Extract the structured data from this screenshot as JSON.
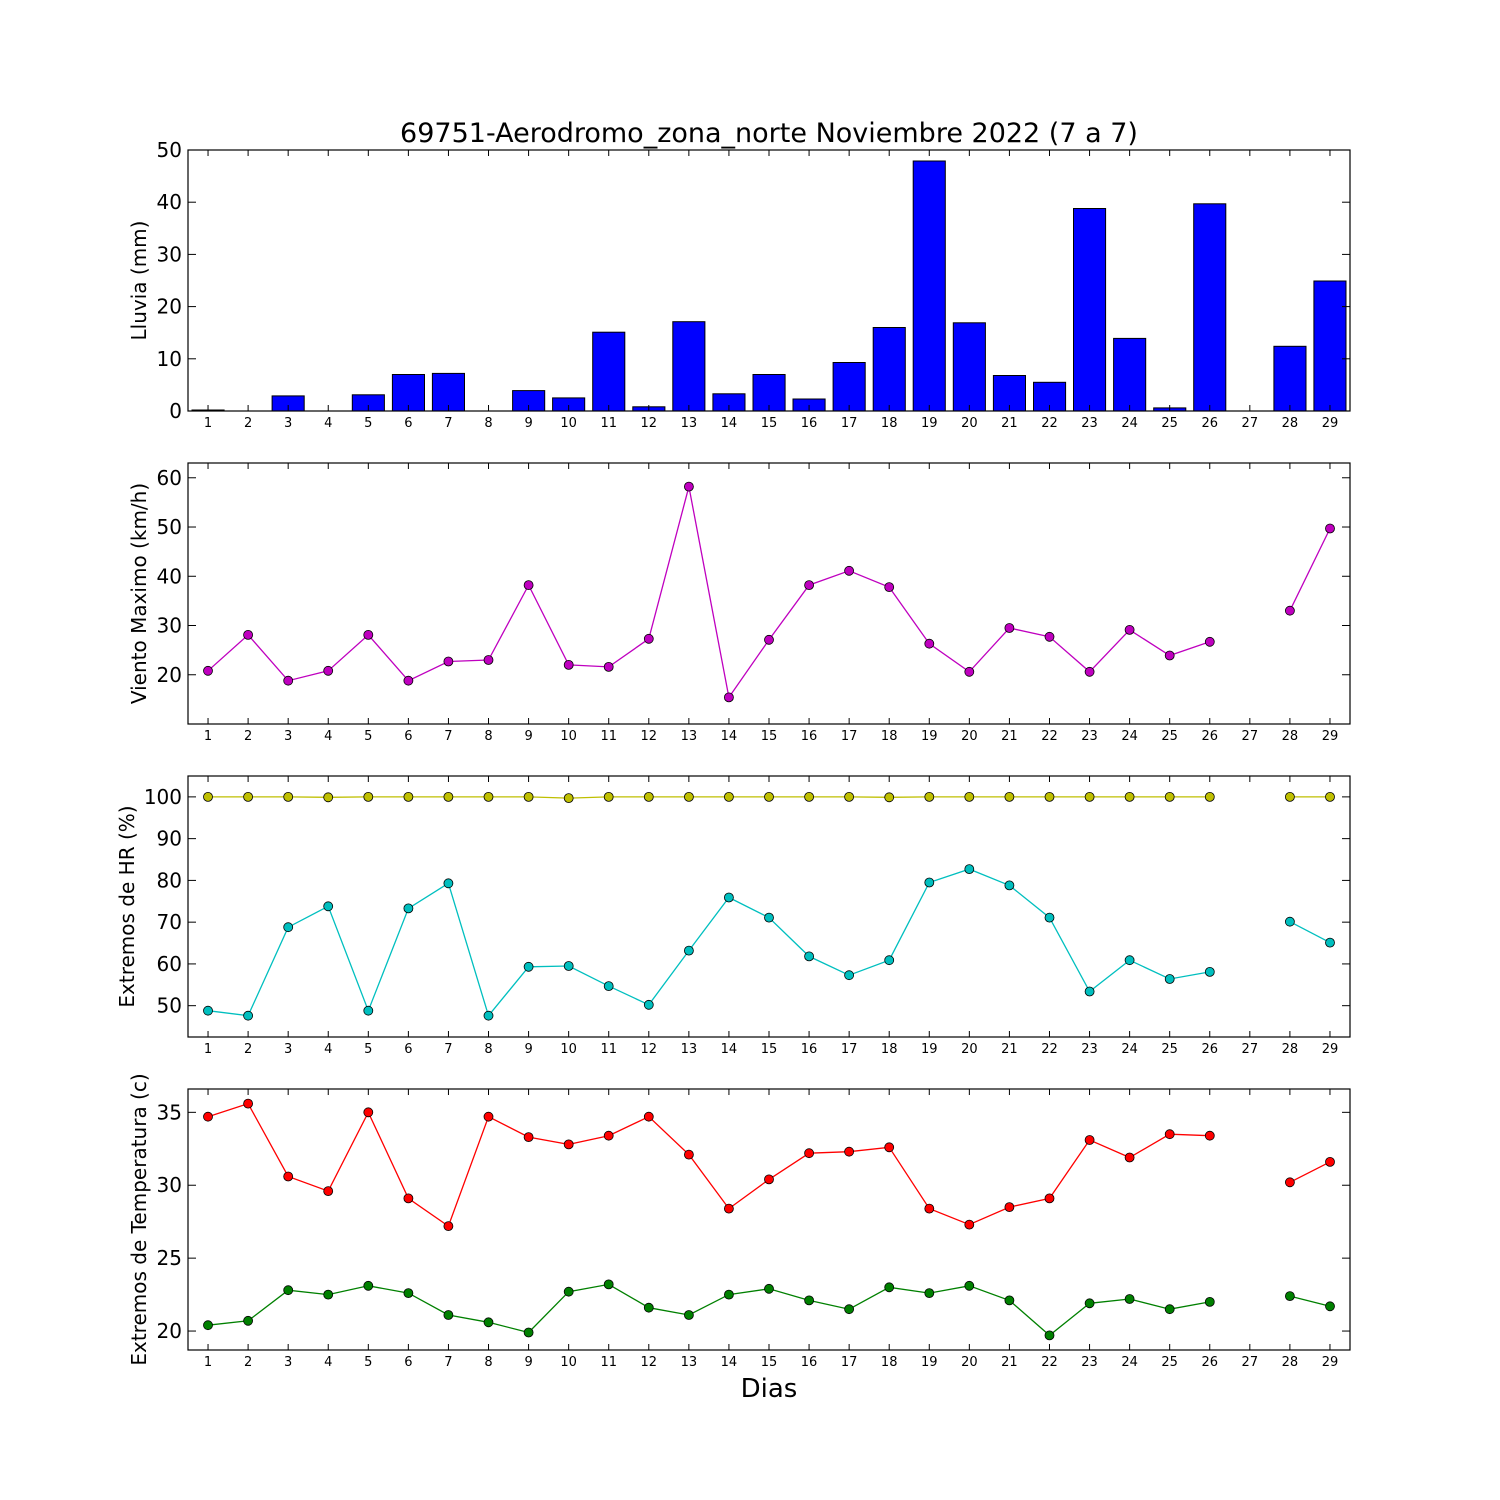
{
  "title": "69751-Aerodromo_zona_norte Noviembre 2022  (7 a 7)",
  "xlabel": "Dias",
  "chart_data": [
    {
      "type": "bar",
      "id": "lluvia",
      "ylabel": "Lluvia (mm)",
      "ylim": [
        0,
        50
      ],
      "yticks": [
        0,
        10,
        20,
        30,
        40,
        50
      ],
      "categories": [
        1,
        2,
        3,
        4,
        5,
        6,
        7,
        8,
        9,
        10,
        11,
        12,
        13,
        14,
        15,
        16,
        17,
        18,
        19,
        20,
        21,
        22,
        23,
        24,
        25,
        26,
        27,
        28,
        29
      ],
      "series": [
        {
          "color": "#0000ff",
          "values": [
            0.2,
            0,
            2.9,
            0,
            3.1,
            7.0,
            7.2,
            0,
            3.9,
            2.5,
            15.1,
            0.8,
            17.1,
            3.3,
            7.0,
            2.3,
            9.3,
            16.0,
            47.9,
            16.9,
            6.8,
            5.5,
            38.8,
            13.9,
            0.6,
            39.7,
            null,
            12.4,
            24.9
          ]
        }
      ],
      "grid": false
    },
    {
      "type": "line",
      "id": "viento",
      "ylabel": "Viento Maximo (km/h)",
      "ylim": [
        10,
        63
      ],
      "yticks": [
        20,
        30,
        40,
        50,
        60
      ],
      "categories": [
        1,
        2,
        3,
        4,
        5,
        6,
        7,
        8,
        9,
        10,
        11,
        12,
        13,
        14,
        15,
        16,
        17,
        18,
        19,
        20,
        21,
        22,
        23,
        24,
        25,
        26,
        27,
        28,
        29
      ],
      "series": [
        {
          "color": "#bf00bf",
          "values": [
            20.8,
            28.1,
            18.8,
            20.8,
            28.1,
            18.8,
            22.7,
            23.0,
            38.2,
            22.0,
            21.6,
            27.3,
            58.2,
            15.4,
            27.1,
            38.2,
            41.1,
            37.8,
            26.3,
            20.6,
            29.5,
            27.7,
            20.6,
            29.1,
            23.9,
            26.7,
            null,
            33.0,
            49.7
          ]
        }
      ],
      "grid": false
    },
    {
      "type": "line",
      "id": "hr",
      "ylabel": "Extremos de HR (%)",
      "ylim": [
        42.5,
        105
      ],
      "yticks": [
        50,
        60,
        70,
        80,
        90,
        100
      ],
      "categories": [
        1,
        2,
        3,
        4,
        5,
        6,
        7,
        8,
        9,
        10,
        11,
        12,
        13,
        14,
        15,
        16,
        17,
        18,
        19,
        20,
        21,
        22,
        23,
        24,
        25,
        26,
        27,
        28,
        29
      ],
      "series": [
        {
          "color": "#bfbf00",
          "values": [
            100,
            100,
            100,
            99.9,
            100,
            100,
            100,
            100,
            100,
            99.7,
            100,
            100,
            100,
            100,
            100,
            100,
            100,
            99.9,
            100,
            100,
            100,
            100,
            100,
            100,
            100,
            100,
            null,
            100,
            100
          ]
        },
        {
          "color": "#00bfbf",
          "values": [
            48.8,
            47.6,
            68.8,
            73.8,
            48.8,
            73.3,
            79.3,
            47.6,
            59.3,
            59.5,
            54.7,
            50.2,
            63.2,
            75.9,
            71.1,
            61.8,
            57.3,
            60.9,
            79.5,
            82.7,
            78.8,
            71.1,
            53.4,
            60.9,
            56.4,
            58.1,
            null,
            70.1,
            65.1
          ]
        }
      ],
      "grid": false
    },
    {
      "type": "line",
      "id": "temp",
      "ylabel": "Extremos de Temperatura (c)",
      "ylim": [
        18.7,
        36.6
      ],
      "yticks": [
        20,
        25,
        30,
        35
      ],
      "categories": [
        1,
        2,
        3,
        4,
        5,
        6,
        7,
        8,
        9,
        10,
        11,
        12,
        13,
        14,
        15,
        16,
        17,
        18,
        19,
        20,
        21,
        22,
        23,
        24,
        25,
        26,
        27,
        28,
        29
      ],
      "series": [
        {
          "color": "#ff0000",
          "values": [
            34.7,
            35.6,
            30.6,
            29.6,
            35.0,
            29.1,
            27.2,
            34.7,
            33.3,
            32.8,
            33.4,
            34.7,
            32.1,
            28.4,
            30.4,
            32.2,
            32.3,
            32.6,
            28.4,
            27.3,
            28.5,
            29.1,
            33.1,
            31.9,
            33.5,
            33.4,
            null,
            30.2,
            31.6
          ]
        },
        {
          "color": "#008000",
          "values": [
            20.4,
            20.7,
            22.8,
            22.5,
            23.1,
            22.6,
            21.1,
            20.6,
            19.9,
            22.7,
            23.2,
            21.6,
            21.1,
            22.5,
            22.9,
            22.1,
            21.5,
            23.0,
            22.6,
            23.1,
            22.1,
            19.7,
            21.9,
            22.2,
            21.5,
            22.0,
            null,
            22.4,
            21.7
          ]
        }
      ],
      "grid": false
    }
  ]
}
